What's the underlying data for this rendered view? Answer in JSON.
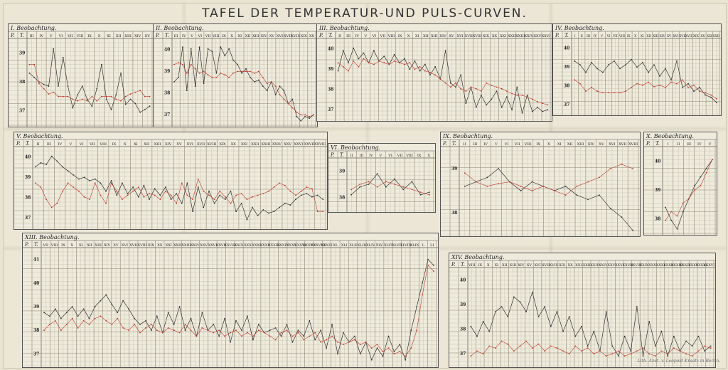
{
  "title": "TAFEL DER TEMPERATUR-UND PULS-CURVEN.",
  "imprint": "Lith. Anst. v. Leopold Kraatz in Berlin.",
  "colors": {
    "pulse": "#333333",
    "temperature": "#c0392b",
    "grid": "#b9b39e",
    "grid_major": "#8d8773"
  },
  "chart_data": [
    {
      "type": "line",
      "title": "I. Beobachtung.",
      "columns": {
        "P": "P.",
        "T": "T."
      },
      "day_labels": [
        "III",
        "IV",
        "V",
        "VI",
        "VII",
        "VIII",
        "IX",
        "X",
        "XI",
        "XII",
        "XIII",
        "XIV",
        "XV"
      ],
      "y_temp_ticks": [
        "39",
        "38",
        "37"
      ],
      "series": [
        {
          "values": [
            60,
            55,
            50,
            47,
            45,
            88,
            45,
            78,
            45,
            20,
            35,
            45,
            30,
            22,
            42,
            70,
            30,
            18,
            35,
            60,
            24,
            30,
            25,
            15,
            18,
            22
          ]
        },
        {
          "values": [
            70,
            70,
            48,
            42,
            36,
            38,
            33,
            33,
            33,
            30,
            28,
            30,
            28,
            33,
            28,
            33,
            33,
            33,
            30,
            28,
            33,
            36,
            38,
            40,
            33,
            33
          ]
        }
      ]
    },
    {
      "type": "line",
      "title": "II. Beobachtung.",
      "columns": {
        "P": "P.",
        "T": "T."
      },
      "day_labels": [
        "III",
        "IV",
        "V",
        "VI",
        "VII",
        "VIII",
        "IX",
        "X",
        "XI",
        "XII",
        "XIII",
        "XIV",
        "XV",
        "XVI",
        "XVII",
        "XVIII",
        "XIX",
        "XX"
      ],
      "y_temp_ticks": [
        "40",
        "39",
        "38",
        "37"
      ],
      "series": [
        {
          "values": [
            50,
            55,
            90,
            40,
            88,
            45,
            90,
            48,
            88,
            85,
            60,
            90,
            80,
            88,
            75,
            70,
            60,
            65,
            55,
            50,
            52,
            45,
            40,
            50,
            35,
            45,
            40,
            25,
            30,
            10,
            5,
            10,
            8,
            12
          ]
        },
        {
          "values": [
            70,
            72,
            70,
            60,
            70,
            65,
            60,
            62,
            58,
            55,
            55,
            60,
            58,
            55,
            60,
            62,
            62,
            62,
            62,
            60,
            62,
            55,
            48,
            50,
            45,
            35,
            30,
            25,
            20,
            15,
            12,
            12,
            10,
            12
          ]
        }
      ]
    },
    {
      "type": "line",
      "title": "III. Beobachtung.",
      "columns": {
        "P": "P.",
        "T": "T."
      },
      "day_labels": [
        "II",
        "III",
        "IV",
        "V",
        "VI",
        "VII",
        "VIII",
        "IX",
        "X",
        "XI",
        "XII",
        "XIII",
        "XIV",
        "XV",
        "XVI",
        "XVII",
        "XVIII",
        "XIX",
        "XX",
        "XXI",
        "XXII",
        "XXIII",
        "XXIV",
        "XXV",
        "XXVI"
      ],
      "y_temp_ticks": [
        "40",
        "39",
        "38",
        "37"
      ],
      "series": [
        {
          "values": [
            60,
            85,
            70,
            88,
            75,
            82,
            70,
            85,
            72,
            78,
            68,
            80,
            70,
            75,
            62,
            72,
            60,
            68,
            55,
            65,
            50,
            85,
            45,
            40,
            55,
            20,
            40,
            15,
            30,
            18,
            25,
            35,
            15,
            28,
            12,
            40,
            8,
            30,
            10,
            15,
            10,
            12
          ]
        },
        {
          "values": [
            70,
            65,
            60,
            72,
            65,
            75,
            70,
            68,
            72,
            70,
            68,
            72,
            70,
            68,
            70,
            62,
            65,
            60,
            58,
            55,
            50,
            45,
            40,
            45,
            38,
            35,
            40,
            38,
            35,
            45,
            42,
            40,
            38,
            35,
            32,
            30,
            30,
            28,
            25,
            22,
            20,
            18
          ]
        }
      ]
    },
    {
      "type": "line",
      "title": "IV. Beobachtung.",
      "columns": {
        "P": "P.",
        "T": "T."
      },
      "day_labels": [
        "I",
        "II",
        "III",
        "IV",
        "V",
        "VI",
        "VII",
        "VIII",
        "IX",
        "X",
        "XI",
        "XII",
        "XIII",
        "XIV",
        "XV",
        "XVI",
        "XVII",
        "XVIII",
        "XIX",
        "XX",
        "XXI",
        "XXII"
      ],
      "y_temp_ticks": [
        "40",
        "39",
        "38",
        "37"
      ],
      "series": [
        {
          "values": [
            70,
            65,
            55,
            68,
            60,
            55,
            65,
            70,
            60,
            65,
            72,
            62,
            68,
            55,
            65,
            50,
            60,
            45,
            70,
            35,
            40,
            30,
            35,
            25,
            22,
            15
          ]
        },
        {
          "values": [
            45,
            40,
            30,
            35,
            30,
            28,
            28,
            28,
            28,
            30,
            35,
            40,
            38,
            42,
            36,
            38,
            35,
            42,
            40,
            45,
            35,
            38,
            30,
            28,
            25,
            20
          ]
        }
      ]
    },
    {
      "type": "line",
      "title": "V. Beobachtung.",
      "columns": {
        "P": "P.",
        "T": "T."
      },
      "day_labels": [
        "II",
        "III",
        "IV",
        "V",
        "VI",
        "VII",
        "VIII",
        "IX",
        "X",
        "XI",
        "XII",
        "XIII",
        "XIV",
        "XV",
        "XVI",
        "XVII",
        "XVIII",
        "XIX",
        "XX",
        "XXI",
        "XXII",
        "XXIII",
        "XXIV",
        "XXV",
        "XXVI",
        "XXVII",
        "XXVIII"
      ],
      "y_temp_ticks": [
        "40",
        "39",
        "38",
        "37"
      ],
      "series": [
        {
          "values": [
            75,
            80,
            78,
            88,
            82,
            75,
            70,
            65,
            60,
            62,
            58,
            60,
            55,
            45,
            58,
            40,
            55,
            42,
            50,
            38,
            52,
            35,
            48,
            40,
            50,
            35,
            42,
            30,
            55,
            20,
            50,
            25,
            45,
            30,
            40,
            35,
            45,
            20,
            30,
            10,
            25,
            15,
            22,
            18,
            20,
            25,
            30,
            28,
            35,
            40,
            42,
            38,
            40,
            35
          ]
        },
        {
          "values": [
            55,
            50,
            35,
            25,
            30,
            45,
            55,
            50,
            45,
            38,
            35,
            55,
            40,
            30,
            55,
            45,
            35,
            40,
            45,
            50,
            38,
            42,
            40,
            35,
            45,
            40,
            30,
            55,
            40,
            35,
            60,
            45,
            40,
            35,
            45,
            38,
            30,
            40,
            42,
            35,
            38,
            40,
            42,
            45,
            50,
            55,
            52,
            45,
            40,
            45,
            50,
            48,
            20,
            20
          ]
        }
      ]
    },
    {
      "type": "line",
      "title": "VI. Beobachtung.",
      "columns": {
        "P": "P.",
        "T": "T."
      },
      "day_labels": [
        "II",
        "III",
        "IV",
        "V",
        "VI",
        "VII",
        "VIII",
        "IX",
        "X"
      ],
      "y_temp_ticks": [
        "39",
        "38"
      ],
      "series": [
        {
          "values": [
            30,
            45,
            50,
            70,
            45,
            60,
            40,
            55,
            30,
            35
          ]
        },
        {
          "values": [
            40,
            50,
            55,
            45,
            55,
            50,
            45,
            40,
            35,
            30
          ]
        }
      ]
    },
    {
      "type": "line",
      "title": "IX. Beobachtung.",
      "columns": {
        "P": "P.",
        "T": "T."
      },
      "day_labels": [
        "II",
        "III",
        "IV",
        "V",
        "VI",
        "VII",
        "VIII",
        "IX",
        "X",
        "XI",
        "XII",
        "XIII",
        "XIV",
        "XV",
        "XVI",
        "XVII",
        "XVIII"
      ],
      "y_temp_ticks": [
        "39",
        "38"
      ],
      "series": [
        {
          "values": [
            55,
            60,
            65,
            75,
            60,
            50,
            60,
            55,
            50,
            55,
            45,
            40,
            45,
            30,
            20,
            5
          ]
        },
        {
          "values": [
            70,
            60,
            55,
            58,
            60,
            55,
            50,
            55,
            50,
            45,
            55,
            60,
            65,
            75,
            80,
            75
          ]
        }
      ]
    },
    {
      "type": "line",
      "title": "X. Beobachtung.",
      "columns": {
        "P": "P.",
        "T": "T."
      },
      "day_labels": [
        "I",
        "II",
        "III",
        "IV",
        "V"
      ],
      "y_temp_ticks": [
        "40",
        "39",
        "38"
      ],
      "series": [
        {
          "values": [
            30,
            15,
            5,
            25,
            40,
            55,
            65,
            75,
            85
          ]
        },
        {
          "values": [
            15,
            25,
            20,
            35,
            40,
            50,
            55,
            70,
            85
          ]
        }
      ]
    },
    {
      "type": "line",
      "title": "XIII. Beobachtung.",
      "columns": {
        "P": "P.",
        "T": "T."
      },
      "day_labels": [
        "VII",
        "VIII",
        "IX",
        "X",
        "XI",
        "XII",
        "XIII",
        "XIV",
        "XV",
        "XVI",
        "XVII",
        "XVIII",
        "XIX",
        "XX",
        "XXI",
        "XXII",
        "XXIII",
        "XXIV",
        "XXV",
        "XXVI",
        "XXVII",
        "XXVIII",
        "XXIX",
        "XXX",
        "XXXI",
        "XXXII",
        "XXXIII",
        "XXXIV",
        "XXXV",
        "XXXVI",
        "XXXVII",
        "XXXVIII",
        "XXXIX",
        "XL",
        "XLI",
        "XLII",
        "XLIII",
        "XLIV",
        "XLV",
        "XLVI",
        "XLVII",
        "XLVIII",
        "XLIX",
        "L",
        "LI"
      ],
      "y_temp_ticks": [
        "41",
        "40",
        "39",
        "38",
        "37"
      ],
      "series": [
        {
          "values": [
            45,
            42,
            48,
            40,
            45,
            50,
            42,
            48,
            40,
            50,
            55,
            60,
            52,
            45,
            55,
            48,
            40,
            35,
            38,
            30,
            42,
            28,
            45,
            35,
            50,
            30,
            40,
            25,
            45,
            30,
            35,
            25,
            40,
            20,
            38,
            30,
            42,
            22,
            35,
            28,
            30,
            32,
            25,
            35,
            20,
            30,
            25,
            38,
            22,
            30,
            15,
            35,
            10,
            28,
            20,
            25,
            10,
            20,
            5,
            15,
            8,
            25,
            12,
            18,
            5,
            30,
            50,
            70,
            90,
            85
          ]
        },
        {
          "values": [
            30,
            35,
            38,
            30,
            35,
            40,
            32,
            38,
            35,
            40,
            42,
            38,
            35,
            40,
            32,
            30,
            35,
            28,
            32,
            35,
            30,
            28,
            32,
            30,
            28,
            35,
            30,
            25,
            32,
            30,
            28,
            30,
            25,
            28,
            30,
            25,
            28,
            25,
            30,
            28,
            25,
            22,
            28,
            30,
            25,
            28,
            22,
            25,
            28,
            20,
            22,
            25,
            20,
            18,
            20,
            22,
            18,
            20,
            15,
            18,
            12,
            15,
            10,
            12,
            8,
            15,
            30,
            60,
            85,
            80
          ]
        }
      ]
    },
    {
      "type": "line",
      "title": "XIV. Beobachtung.",
      "columns": {
        "P": "P.",
        "T": "T."
      },
      "day_labels": [
        "VIII",
        "IX",
        "X",
        "XI",
        "XII",
        "XIII",
        "XIV",
        "XV",
        "XVI",
        "XVII",
        "XVIII",
        "XIX",
        "XX",
        "XXI",
        "XXII",
        "XXIII",
        "XXIV",
        "XXV",
        "XXVI",
        "XXVII",
        "XXVIII",
        "XXIX",
        "XXX",
        "XXXI",
        "XXXII",
        "XXXIII",
        "XXXIV",
        "XXXV",
        "XXXVI",
        "XXXVII"
      ],
      "y_temp_ticks": [
        "40",
        "39",
        "38",
        "37"
      ],
      "series": [
        {
          "values": [
            40,
            30,
            45,
            35,
            55,
            60,
            50,
            70,
            65,
            55,
            75,
            50,
            60,
            40,
            55,
            35,
            50,
            30,
            40,
            20,
            35,
            15,
            55,
            20,
            10,
            30,
            15,
            60,
            10,
            45,
            20,
            35,
            10,
            30,
            15,
            25,
            20,
            30,
            15,
            20
          ]
        },
        {
          "values": [
            10,
            15,
            12,
            20,
            18,
            25,
            22,
            15,
            20,
            25,
            18,
            22,
            15,
            20,
            18,
            15,
            12,
            20,
            15,
            18,
            12,
            15,
            10,
            12,
            15,
            10,
            12,
            15,
            18,
            12,
            10,
            15,
            12,
            18,
            15,
            12,
            10,
            15,
            20,
            18
          ]
        }
      ]
    }
  ]
}
